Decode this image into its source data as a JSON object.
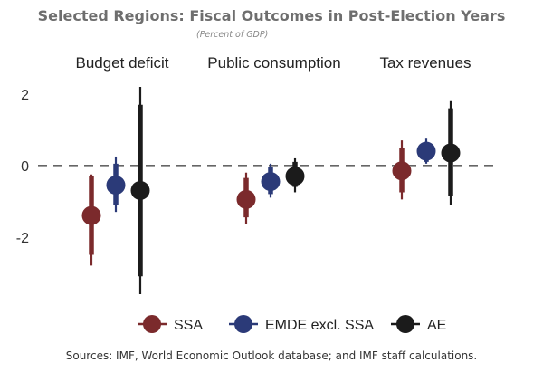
{
  "chart_data": {
    "type": "scatter",
    "title": "Selected Regions: Fiscal Outcomes in Post-Election Years",
    "subtitle": "(Percent of GDP)",
    "categories": [
      "Budget deficit",
      "Public consumption",
      "Tax revenues"
    ],
    "ylim": [
      -3.6,
      2.3
    ],
    "yticks": [
      -2,
      0,
      2
    ],
    "ytick_labels": [
      "-2",
      "0",
      "2"
    ],
    "grid": false,
    "reference_line": 0,
    "legend_position": "bottom",
    "series": [
      {
        "name": "SSA",
        "color": "#7b2a2c",
        "values": [
          -1.4,
          -0.95,
          -0.15
        ],
        "inner_range": [
          [
            -2.5,
            -0.3
          ],
          [
            -1.45,
            -0.35
          ],
          [
            -0.75,
            0.5
          ]
        ],
        "outer_range": [
          [
            -2.8,
            -0.25
          ],
          [
            -1.65,
            -0.2
          ],
          [
            -0.95,
            0.7
          ]
        ]
      },
      {
        "name": "EMDE excl. SSA",
        "color": "#2b3a78",
        "values": [
          -0.55,
          -0.45,
          0.4
        ],
        "inner_range": [
          [
            -1.1,
            0.05
          ],
          [
            -0.8,
            -0.05
          ],
          [
            0.1,
            0.65
          ]
        ],
        "outer_range": [
          [
            -1.3,
            0.25
          ],
          [
            -0.9,
            0.05
          ],
          [
            0.05,
            0.75
          ]
        ]
      },
      {
        "name": "AE",
        "color": "#1b1b1b",
        "values": [
          -0.7,
          -0.3,
          0.35
        ],
        "inner_range": [
          [
            -3.1,
            1.7
          ],
          [
            -0.6,
            0.1
          ],
          [
            -0.85,
            1.6
          ]
        ],
        "outer_range": [
          [
            -3.6,
            2.2
          ],
          [
            -0.75,
            0.2
          ],
          [
            -1.1,
            1.8
          ]
        ]
      }
    ]
  },
  "source": "Sources: IMF, World Economic Outlook database; and IMF staff calculations."
}
